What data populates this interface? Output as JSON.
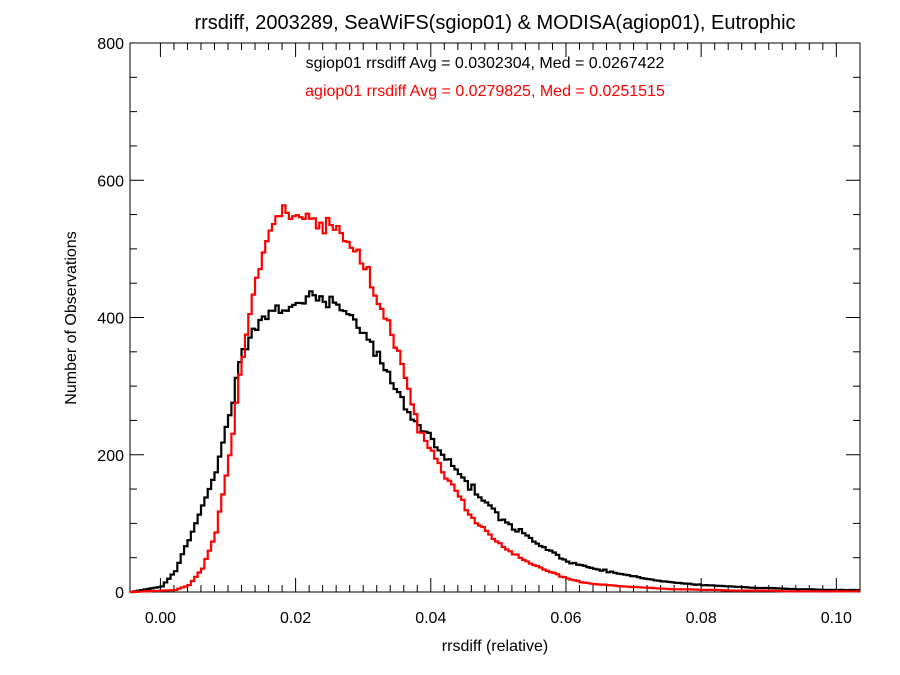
{
  "chart_data": {
    "type": "histogram",
    "title": "rrsdiff, 2003289, SeaWiFS(sgiop01) & MODISA(agiop01), Eutrophic",
    "xlabel": "rrsdiff (relative)",
    "ylabel": "Number of Observations",
    "xlim": [
      -0.0045,
      0.1035
    ],
    "ylim": [
      0,
      800
    ],
    "xticks": [
      0.0,
      0.02,
      0.04,
      0.06,
      0.08,
      0.1
    ],
    "xtick_labels": [
      "0.00",
      "0.02",
      "0.04",
      "0.06",
      "0.08",
      "0.10"
    ],
    "yticks": [
      0,
      200,
      400,
      600,
      800
    ],
    "ytick_labels": [
      "0",
      "200",
      "400",
      "600",
      "800"
    ],
    "grid": false,
    "annotations": [
      {
        "text": "sgiop01 rrsdiff Avg = 0.0302304, Med = 0.0267422",
        "color": "#000000"
      },
      {
        "text": "agiop01 rrsdiff Avg = 0.0279825, Med = 0.0251515",
        "color": "#ff0000"
      }
    ],
    "series": [
      {
        "color": "#000000",
        "x": [
          -0.0045,
          0.0,
          0.002,
          0.004,
          0.006,
          0.008,
          0.01,
          0.012,
          0.014,
          0.016,
          0.018,
          0.02,
          0.022,
          0.024,
          0.026,
          0.028,
          0.03,
          0.032,
          0.034,
          0.036,
          0.038,
          0.04,
          0.042,
          0.044,
          0.046,
          0.048,
          0.05,
          0.052,
          0.054,
          0.056,
          0.058,
          0.06,
          0.062,
          0.064,
          0.066,
          0.068,
          0.07,
          0.072,
          0.074,
          0.076,
          0.078,
          0.08,
          0.082,
          0.084,
          0.086,
          0.088,
          0.09,
          0.092,
          0.094,
          0.096,
          0.098,
          0.1,
          0.1035
        ],
        "y": [
          0,
          8,
          30,
          75,
          130,
          180,
          270,
          340,
          380,
          400,
          410,
          425,
          440,
          430,
          410,
          390,
          370,
          345,
          315,
          275,
          245,
          215,
          190,
          170,
          150,
          135,
          110,
          95,
          80,
          65,
          55,
          45,
          40,
          35,
          30,
          25,
          22,
          18,
          16,
          14,
          12,
          10,
          9,
          8,
          7,
          6,
          6,
          5,
          4,
          4,
          3,
          3,
          3
        ]
      },
      {
        "color": "#ff0000",
        "x": [
          -0.0045,
          0.002,
          0.004,
          0.006,
          0.008,
          0.01,
          0.012,
          0.014,
          0.016,
          0.018,
          0.02,
          0.022,
          0.024,
          0.026,
          0.028,
          0.03,
          0.032,
          0.034,
          0.036,
          0.038,
          0.04,
          0.042,
          0.044,
          0.046,
          0.048,
          0.05,
          0.052,
          0.054,
          0.056,
          0.058,
          0.06,
          0.062,
          0.064,
          0.066,
          0.068,
          0.07,
          0.072,
          0.074,
          0.076,
          0.078,
          0.08,
          0.082,
          0.084,
          0.086,
          0.088,
          0.09,
          0.092,
          0.094,
          0.096,
          0.098,
          0.1,
          0.1035
        ],
        "y": [
          0,
          3,
          10,
          35,
          90,
          200,
          340,
          450,
          525,
          560,
          555,
          550,
          535,
          520,
          500,
          470,
          430,
          385,
          320,
          235,
          200,
          165,
          135,
          110,
          90,
          72,
          55,
          43,
          34,
          27,
          20,
          15,
          12,
          10,
          8,
          7,
          6,
          5,
          4,
          4,
          3,
          3,
          2,
          2,
          2,
          2,
          1,
          1,
          1,
          1,
          1,
          1
        ]
      }
    ]
  }
}
